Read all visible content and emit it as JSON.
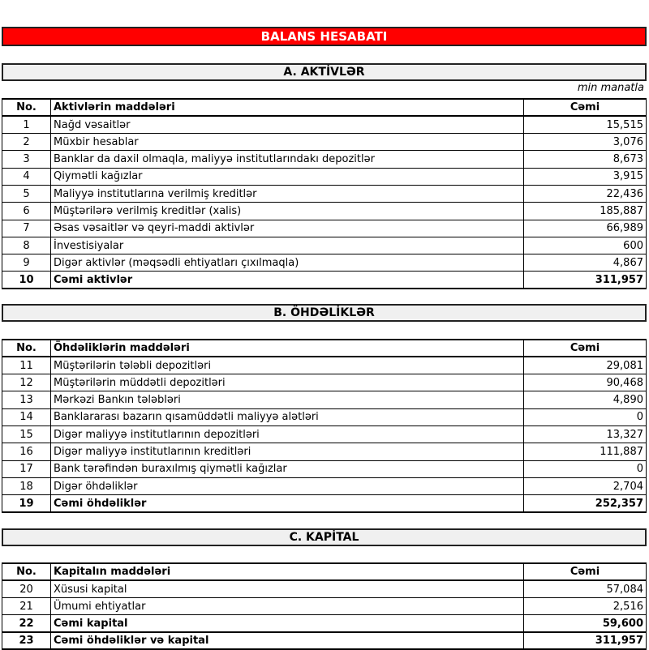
{
  "title": "BALANS HESABATI",
  "unit": "min manatla",
  "sections": [
    {
      "title": "A. AKTİVLƏR",
      "header": {
        "no": "No.",
        "item": "Aktivlərin maddələri",
        "value": "Cəmi"
      },
      "rows": [
        {
          "no": "1",
          "item": "Nağd vəsaitlər",
          "value": "15,515"
        },
        {
          "no": "2",
          "item": "Müxbir hesablar",
          "value": "3,076"
        },
        {
          "no": "3",
          "item": "Banklar da daxil olmaqla, maliyyə institutlarındakı depozitlər",
          "value": "8,673"
        },
        {
          "no": "4",
          "item": "Qiymətli kağızlar",
          "value": "3,915"
        },
        {
          "no": "5",
          "item": "Maliyyə institutlarına verilmiş kreditlər",
          "value": "22,436"
        },
        {
          "no": "6",
          "item": "Müştərilərə verilmiş kreditlər (xalis)",
          "value": "185,887"
        },
        {
          "no": "7",
          "item": "Əsas vəsaitlər və qeyri-maddi aktivlər",
          "value": "66,989"
        },
        {
          "no": "8",
          "item": "İnvestisiyalar",
          "value": "600"
        },
        {
          "no": "9",
          "item": "Digər aktivlər (məqsədli ehtiyatları çıxılmaqla)",
          "value": "4,867"
        },
        {
          "no": "10",
          "item": "Cəmi aktivlər",
          "value": "311,957",
          "total": true
        }
      ]
    },
    {
      "title": "B. ÖHDƏLİKLƏR",
      "header": {
        "no": "No.",
        "item": "Öhdəliklərin maddələri",
        "value": "Cəmi"
      },
      "rows": [
        {
          "no": "11",
          "item": "Müştərilərin tələbli depozitləri",
          "value": "29,081"
        },
        {
          "no": "12",
          "item": "Müştərilərin müddətli depozitləri",
          "value": "90,468"
        },
        {
          "no": "13",
          "item": "Mərkəzi Bankın tələbləri",
          "value": "4,890"
        },
        {
          "no": "14",
          "item": "Banklararası bazarın qısamüddətli maliyyə alətləri",
          "value": "0"
        },
        {
          "no": "15",
          "item": "Digər maliyyə institutlarının depozitləri",
          "value": "13,327"
        },
        {
          "no": "16",
          "item": "Digər maliyyə institutlarının kreditləri",
          "value": "111,887"
        },
        {
          "no": "17",
          "item": "Bank tərəfindən buraxılmış qiymətli kağızlar",
          "value": "0"
        },
        {
          "no": "18",
          "item": "Digər öhdəliklər",
          "value": "2,704"
        },
        {
          "no": "19",
          "item": "Cəmi öhdəliklər",
          "value": "252,357",
          "total": true
        }
      ]
    },
    {
      "title": "C. KAPİTAL",
      "header": {
        "no": "No.",
        "item": "Kapitalın maddələri",
        "value": "Cəmi"
      },
      "rows": [
        {
          "no": "20",
          "item": "Xüsusi kapital",
          "value": "57,084"
        },
        {
          "no": "21",
          "item": "Ümumi ehtiyatlar",
          "value": "2,516"
        },
        {
          "no": "22",
          "item": "Cəmi kapital",
          "value": "59,600",
          "total": true
        },
        {
          "no": "23",
          "item": "Cəmi öhdəliklər və kapital",
          "value": "311,957",
          "total": true
        }
      ]
    }
  ]
}
